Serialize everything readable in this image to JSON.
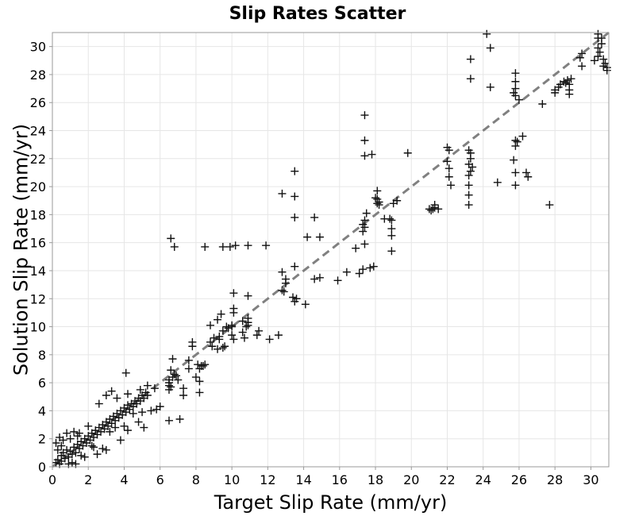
{
  "chart_data": {
    "type": "scatter",
    "title": "Slip Rates Scatter",
    "xlabel": "Target Slip Rate (mm/yr)",
    "ylabel": "Solution Slip Rate (mm/yr)",
    "xlim": [
      0,
      31
    ],
    "ylim": [
      0,
      31
    ],
    "xticks": [
      0,
      2,
      4,
      6,
      8,
      10,
      12,
      14,
      16,
      18,
      20,
      22,
      24,
      26,
      28,
      30
    ],
    "yticks": [
      0,
      2,
      4,
      6,
      8,
      10,
      12,
      14,
      16,
      18,
      20,
      22,
      24,
      26,
      28,
      30
    ],
    "grid": true,
    "marker": "plus",
    "reference_line": {
      "style": "dashed",
      "color": "#808080",
      "from": [
        0,
        0
      ],
      "to": [
        31,
        31
      ]
    },
    "series": [
      {
        "name": "Slip Rates",
        "points": [
          [
            0.2,
            0.3
          ],
          [
            0.3,
            0.5
          ],
          [
            0.4,
            0.2
          ],
          [
            0.5,
            0.8
          ],
          [
            0.5,
            0.4
          ],
          [
            0.6,
            1.0
          ],
          [
            0.7,
            0.6
          ],
          [
            0.8,
            1.2
          ],
          [
            0.9,
            0.7
          ],
          [
            1.0,
            1.1
          ],
          [
            1.1,
            0.9
          ],
          [
            1.2,
            1.4
          ],
          [
            1.3,
            1.0
          ],
          [
            1.4,
            1.6
          ],
          [
            1.5,
            1.3
          ],
          [
            1.6,
            1.8
          ],
          [
            1.7,
            1.5
          ],
          [
            1.8,
            2.0
          ],
          [
            1.9,
            1.7
          ],
          [
            2.0,
            2.2
          ],
          [
            2.1,
            1.9
          ],
          [
            2.2,
            2.4
          ],
          [
            2.3,
            2.1
          ],
          [
            2.4,
            2.6
          ],
          [
            2.5,
            2.3
          ],
          [
            2.6,
            2.8
          ],
          [
            2.7,
            2.5
          ],
          [
            2.8,
            3.0
          ],
          [
            2.9,
            2.7
          ],
          [
            3.0,
            3.2
          ],
          [
            3.1,
            2.9
          ],
          [
            3.2,
            3.4
          ],
          [
            3.3,
            3.1
          ],
          [
            3.4,
            3.6
          ],
          [
            3.5,
            3.3
          ],
          [
            3.6,
            3.8
          ],
          [
            3.7,
            3.5
          ],
          [
            3.8,
            4.0
          ],
          [
            3.9,
            3.7
          ],
          [
            4.0,
            4.2
          ],
          [
            4.1,
            3.9
          ],
          [
            4.2,
            4.4
          ],
          [
            4.3,
            4.1
          ],
          [
            4.4,
            4.5
          ],
          [
            4.5,
            4.3
          ],
          [
            4.6,
            4.7
          ],
          [
            4.7,
            4.5
          ],
          [
            4.8,
            4.9
          ],
          [
            4.9,
            4.7
          ],
          [
            5.0,
            5.1
          ],
          [
            5.1,
            4.9
          ],
          [
            5.2,
            5.3
          ],
          [
            5.3,
            5.1
          ],
          [
            0.2,
            1.7
          ],
          [
            0.4,
            2.1
          ],
          [
            0.5,
            1.5
          ],
          [
            0.8,
            2.4
          ],
          [
            1.0,
            2.0
          ],
          [
            1.2,
            2.5
          ],
          [
            1.3,
            0.2
          ],
          [
            1.5,
            2.4
          ],
          [
            1.6,
            0.8
          ],
          [
            2.0,
            2.9
          ],
          [
            2.2,
            1.5
          ],
          [
            2.5,
            0.9
          ],
          [
            2.8,
            1.3
          ],
          [
            3.0,
            1.2
          ],
          [
            3.2,
            2.5
          ],
          [
            3.5,
            2.8
          ],
          [
            4.0,
            2.9
          ],
          [
            4.2,
            5.2
          ],
          [
            4.5,
            3.8
          ],
          [
            5.0,
            3.9
          ],
          [
            5.5,
            4.0
          ],
          [
            5.8,
            4.1
          ],
          [
            4.8,
            3.2
          ],
          [
            4.9,
            5.5
          ],
          [
            5.3,
            5.8
          ],
          [
            2.6,
            4.5
          ],
          [
            3.0,
            5.1
          ],
          [
            3.3,
            5.4
          ],
          [
            3.6,
            4.9
          ],
          [
            4.2,
            2.6
          ],
          [
            1.1,
            0.3
          ],
          [
            0.9,
            0.2
          ],
          [
            1.8,
            0.7
          ],
          [
            2.3,
            1.4
          ],
          [
            4.1,
            6.7
          ],
          [
            5.1,
            2.8
          ],
          [
            5.7,
            5.6
          ],
          [
            6.0,
            4.3
          ],
          [
            3.8,
            1.9
          ],
          [
            0.3,
            1.2
          ],
          [
            0.6,
            1.9
          ],
          [
            1.4,
            2.2
          ],
          [
            6.5,
            5.5
          ],
          [
            6.5,
            5.8
          ],
          [
            6.5,
            6.0
          ],
          [
            6.5,
            6.2
          ],
          [
            6.6,
            5.7
          ],
          [
            6.7,
            6.4
          ],
          [
            6.8,
            6.6
          ],
          [
            6.9,
            6.5
          ],
          [
            6.6,
            6.9
          ],
          [
            6.7,
            7.7
          ],
          [
            6.5,
            3.3
          ],
          [
            7.1,
            3.4
          ],
          [
            7.0,
            6.2
          ],
          [
            7.3,
            5.6
          ],
          [
            7.3,
            5.1
          ],
          [
            7.6,
            7.0
          ],
          [
            7.6,
            7.6
          ],
          [
            7.8,
            8.6
          ],
          [
            7.8,
            8.9
          ],
          [
            8.1,
            7.3
          ],
          [
            8.2,
            7.0
          ],
          [
            8.3,
            7.2
          ],
          [
            8.4,
            7.2
          ],
          [
            8.0,
            6.4
          ],
          [
            8.2,
            6.1
          ],
          [
            8.2,
            5.3
          ],
          [
            8.5,
            7.3
          ],
          [
            8.8,
            8.9
          ],
          [
            8.9,
            8.6
          ],
          [
            9.0,
            9.2
          ],
          [
            9.2,
            8.4
          ],
          [
            9.3,
            9.1
          ],
          [
            9.3,
            9.3
          ],
          [
            9.6,
            8.6
          ],
          [
            9.5,
            8.5
          ],
          [
            9.7,
            10.0
          ],
          [
            9.8,
            9.9
          ],
          [
            10.0,
            10.1
          ],
          [
            10.0,
            10.0
          ],
          [
            10.0,
            9.4
          ],
          [
            10.1,
            9.1
          ],
          [
            10.1,
            11.0
          ],
          [
            10.1,
            11.3
          ],
          [
            10.1,
            12.4
          ],
          [
            10.6,
            9.6
          ],
          [
            10.8,
            10.0
          ],
          [
            10.9,
            10.1
          ],
          [
            10.9,
            10.3
          ],
          [
            10.9,
            10.6
          ],
          [
            10.9,
            12.2
          ],
          [
            10.6,
            10.4
          ],
          [
            11.4,
            9.4
          ],
          [
            11.5,
            9.7
          ],
          [
            12.1,
            9.1
          ],
          [
            12.6,
            9.4
          ],
          [
            10.7,
            9.2
          ],
          [
            9.2,
            10.5
          ],
          [
            9.4,
            10.9
          ],
          [
            8.8,
            10.1
          ],
          [
            9.5,
            9.7
          ],
          [
            6.6,
            16.3
          ],
          [
            6.8,
            15.7
          ],
          [
            8.5,
            15.7
          ],
          [
            9.5,
            15.7
          ],
          [
            9.9,
            15.7
          ],
          [
            10.2,
            15.8
          ],
          [
            10.9,
            15.8
          ],
          [
            11.9,
            15.8
          ],
          [
            12.8,
            12.6
          ],
          [
            12.9,
            12.5
          ],
          [
            12.8,
            13.9
          ],
          [
            13.0,
            13.4
          ],
          [
            13.0,
            13.1
          ],
          [
            13.4,
            12.1
          ],
          [
            13.5,
            11.8
          ],
          [
            13.5,
            14.3
          ],
          [
            13.6,
            12.0
          ],
          [
            14.1,
            11.6
          ],
          [
            14.6,
            13.4
          ],
          [
            14.9,
            13.5
          ],
          [
            12.8,
            19.5
          ],
          [
            13.5,
            19.3
          ],
          [
            13.5,
            17.8
          ],
          [
            13.5,
            21.1
          ],
          [
            14.2,
            16.4
          ],
          [
            14.6,
            17.8
          ],
          [
            14.9,
            16.4
          ],
          [
            15.9,
            13.3
          ],
          [
            16.4,
            13.9
          ],
          [
            16.9,
            15.6
          ],
          [
            17.1,
            13.8
          ],
          [
            17.3,
            14.1
          ],
          [
            17.3,
            17.3
          ],
          [
            17.4,
            17.1
          ],
          [
            17.4,
            17.6
          ],
          [
            17.4,
            15.9
          ],
          [
            17.3,
            16.8
          ],
          [
            17.5,
            18.1
          ],
          [
            17.4,
            22.2
          ],
          [
            17.4,
            23.3
          ],
          [
            17.4,
            25.1
          ],
          [
            17.8,
            22.3
          ],
          [
            17.7,
            14.2
          ],
          [
            17.9,
            14.3
          ],
          [
            18.1,
            18.8
          ],
          [
            18.1,
            19.1
          ],
          [
            18.1,
            19.7
          ],
          [
            18.0,
            19.2
          ],
          [
            18.2,
            18.9
          ],
          [
            18.2,
            18.7
          ],
          [
            18.5,
            17.7
          ],
          [
            18.8,
            17.7
          ],
          [
            18.9,
            17.6
          ],
          [
            18.9,
            17.0
          ],
          [
            18.9,
            16.5
          ],
          [
            18.9,
            15.4
          ],
          [
            19.0,
            18.8
          ],
          [
            19.2,
            19.0
          ],
          [
            19.8,
            22.4
          ],
          [
            21.1,
            18.3
          ],
          [
            21.2,
            18.4
          ],
          [
            21.3,
            18.5
          ],
          [
            21.3,
            18.7
          ],
          [
            21.0,
            18.4
          ],
          [
            21.5,
            18.4
          ],
          [
            22.0,
            21.8
          ],
          [
            22.0,
            22.8
          ],
          [
            22.1,
            22.6
          ],
          [
            22.1,
            20.7
          ],
          [
            22.2,
            20.1
          ],
          [
            22.1,
            21.3
          ],
          [
            23.2,
            18.7
          ],
          [
            23.2,
            19.4
          ],
          [
            23.2,
            20.1
          ],
          [
            23.2,
            20.8
          ],
          [
            23.3,
            21.1
          ],
          [
            23.2,
            21.6
          ],
          [
            23.3,
            22.0
          ],
          [
            23.3,
            22.4
          ],
          [
            23.2,
            22.6
          ],
          [
            23.4,
            21.4
          ],
          [
            23.3,
            27.7
          ],
          [
            23.3,
            29.1
          ],
          [
            24.2,
            30.9
          ],
          [
            24.4,
            29.9
          ],
          [
            24.4,
            27.1
          ],
          [
            24.8,
            20.3
          ],
          [
            25.7,
            26.7
          ],
          [
            25.8,
            26.5
          ],
          [
            25.8,
            27.0
          ],
          [
            25.8,
            27.5
          ],
          [
            25.8,
            28.1
          ],
          [
            25.7,
            21.9
          ],
          [
            25.8,
            21.0
          ],
          [
            25.8,
            20.1
          ],
          [
            25.8,
            23.3
          ],
          [
            25.8,
            22.9
          ],
          [
            25.9,
            23.2
          ],
          [
            26.2,
            23.6
          ],
          [
            26.4,
            21.0
          ],
          [
            26.5,
            20.7
          ],
          [
            26.0,
            26.2
          ],
          [
            27.3,
            25.9
          ],
          [
            27.7,
            18.7
          ],
          [
            28.0,
            26.7
          ],
          [
            28.0,
            26.9
          ],
          [
            28.2,
            27.1
          ],
          [
            28.3,
            27.3
          ],
          [
            28.5,
            27.5
          ],
          [
            28.6,
            27.4
          ],
          [
            28.7,
            27.6
          ],
          [
            28.8,
            27.3
          ],
          [
            28.8,
            26.6
          ],
          [
            28.8,
            26.9
          ],
          [
            28.9,
            27.7
          ],
          [
            29.4,
            29.2
          ],
          [
            29.5,
            29.5
          ],
          [
            29.5,
            28.6
          ],
          [
            30.2,
            29.0
          ],
          [
            30.4,
            29.3
          ],
          [
            30.5,
            29.6
          ],
          [
            30.4,
            29.9
          ],
          [
            30.6,
            30.2
          ],
          [
            30.6,
            30.6
          ],
          [
            30.7,
            29.1
          ],
          [
            30.8,
            28.8
          ],
          [
            30.9,
            28.5
          ],
          [
            30.9,
            28.3
          ],
          [
            30.7,
            28.6
          ],
          [
            30.4,
            30.6
          ],
          [
            30.4,
            30.9
          ]
        ]
      }
    ]
  }
}
